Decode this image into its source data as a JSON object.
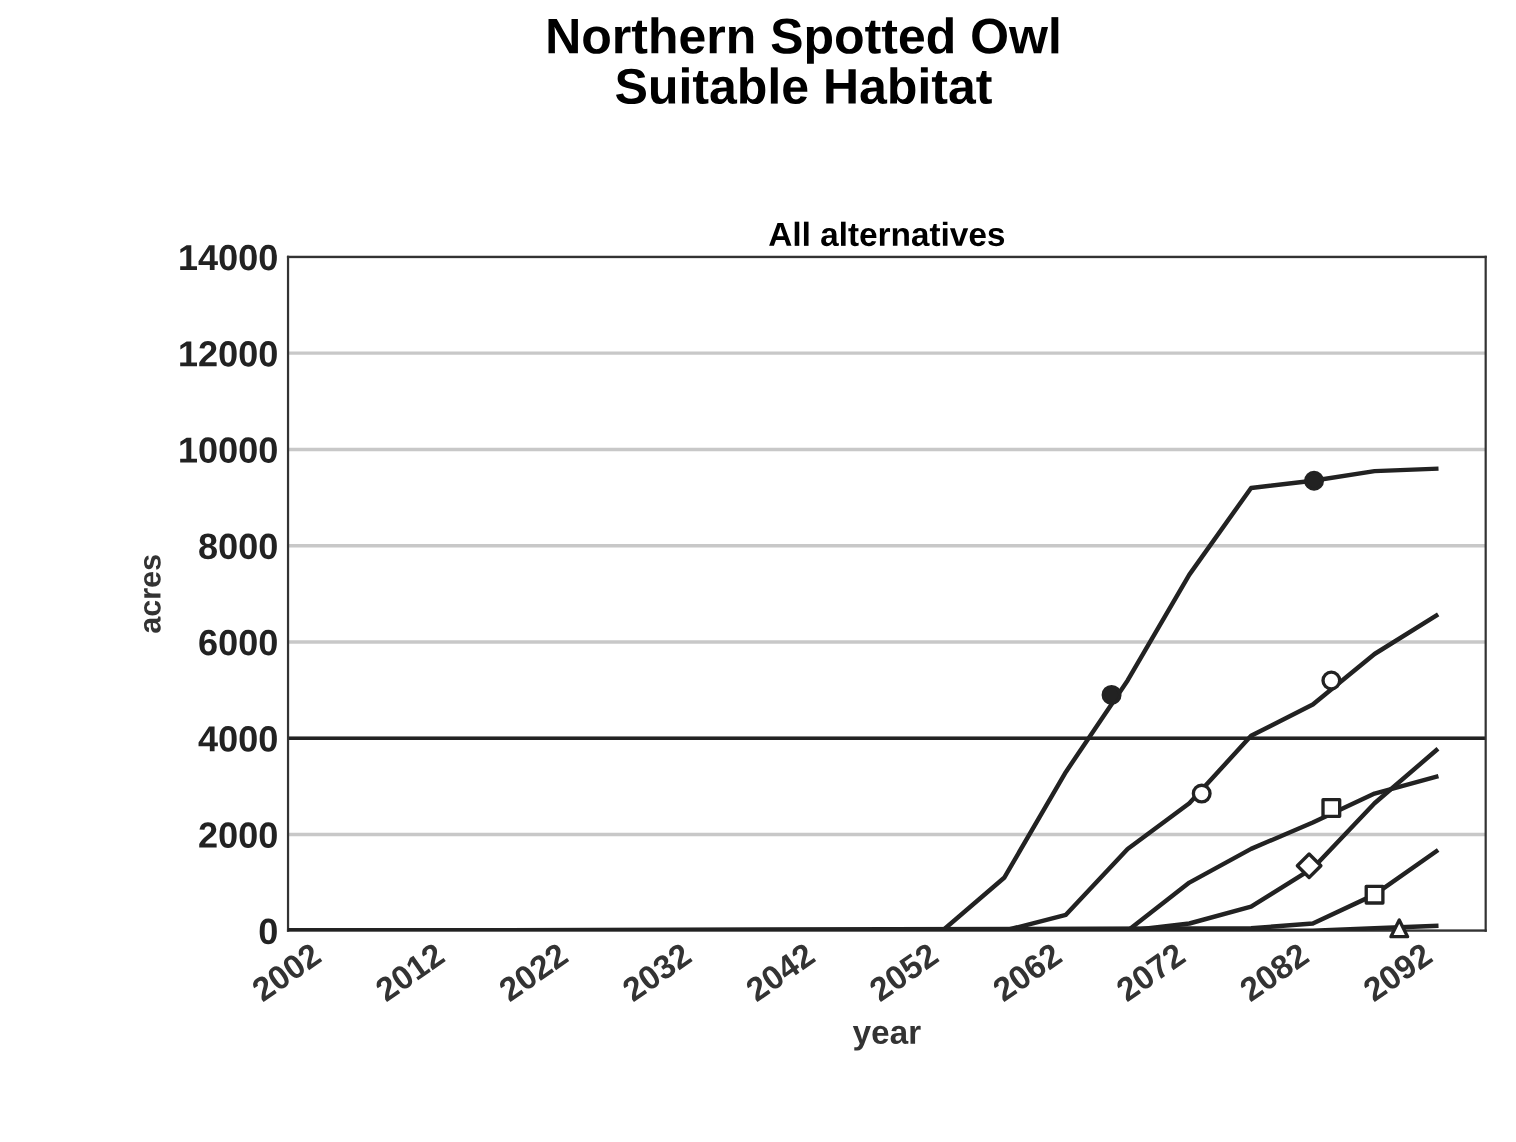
{
  "chart_data": {
    "type": "line",
    "title": "Northern Spotted Owl\nSuitable Habitat",
    "subtitle": "All alternatives",
    "xlabel": "year",
    "ylabel": "acres",
    "xlim": [
      2002,
      2099
    ],
    "xticks": [
      2002,
      2012,
      2022,
      2032,
      2042,
      2052,
      2062,
      2072,
      2082,
      2092
    ],
    "ylim": [
      0,
      14000
    ],
    "yticks": [
      0,
      2000,
      4000,
      6000,
      8000,
      10000,
      12000,
      14000
    ],
    "grid": "y",
    "legend": false,
    "ref_lines": [
      {
        "axis": "y",
        "value": 4000,
        "color": "#222222"
      }
    ],
    "series": [
      {
        "color": "#222222",
        "x": [
          2002,
          2055,
          2060,
          2065,
          2070,
          2075,
          2080,
          2085,
          2090,
          2095
        ],
        "values": [
          0,
          0,
          1100,
          3300,
          5200,
          7400,
          9200,
          9350,
          9550,
          9600
        ]
      },
      {
        "color": "#222222",
        "x": [
          2002,
          2060,
          2065,
          2070,
          2075,
          2080,
          2085,
          2090,
          2095
        ],
        "values": [
          0,
          0,
          330,
          1700,
          2650,
          4050,
          4700,
          5750,
          6550
        ]
      },
      {
        "color": "#222222",
        "x": [
          2002,
          2070,
          2075,
          2080,
          2085,
          2090,
          2095
        ],
        "values": [
          0,
          0,
          1000,
          1700,
          2250,
          2850,
          3200
        ]
      },
      {
        "color": "#222222",
        "x": [
          2002,
          2070,
          2075,
          2080,
          2085,
          2090,
          2095
        ],
        "values": [
          0,
          0,
          150,
          500,
          1300,
          2650,
          3750
        ]
      },
      {
        "color": "#222222",
        "x": [
          2002,
          2080,
          2085,
          2090,
          2095
        ],
        "values": [
          0,
          50,
          150,
          750,
          1650
        ]
      },
      {
        "color": "#222222",
        "x": [
          2002,
          2085,
          2090,
          2095
        ],
        "values": [
          0,
          0,
          50,
          100
        ]
      },
      {
        "type": "scatter",
        "marker": "circle",
        "color": "#222222",
        "x": [
          2068.7,
          2085.1
        ],
        "values": [
          4900,
          9350
        ]
      },
      {
        "type": "scatter",
        "marker": "circle",
        "color": "#ffffff",
        "x": [
          2076,
          2086.5
        ],
        "values": [
          2850,
          5200
        ]
      },
      {
        "type": "scatter",
        "marker": "square",
        "color": "#ffffff",
        "x": [
          2086.5
        ],
        "values": [
          2550
        ]
      },
      {
        "type": "scatter",
        "marker": "diamond",
        "color": "#ffffff",
        "x": [
          2084.7
        ],
        "values": [
          1350
        ]
      },
      {
        "type": "scatter",
        "marker": "square",
        "color": "#ffffff",
        "x": [
          2090
        ],
        "values": [
          750
        ]
      },
      {
        "type": "scatter",
        "marker": "triangle",
        "color": "#ffffff",
        "x": [
          2092
        ],
        "values": [
          50
        ]
      }
    ]
  }
}
